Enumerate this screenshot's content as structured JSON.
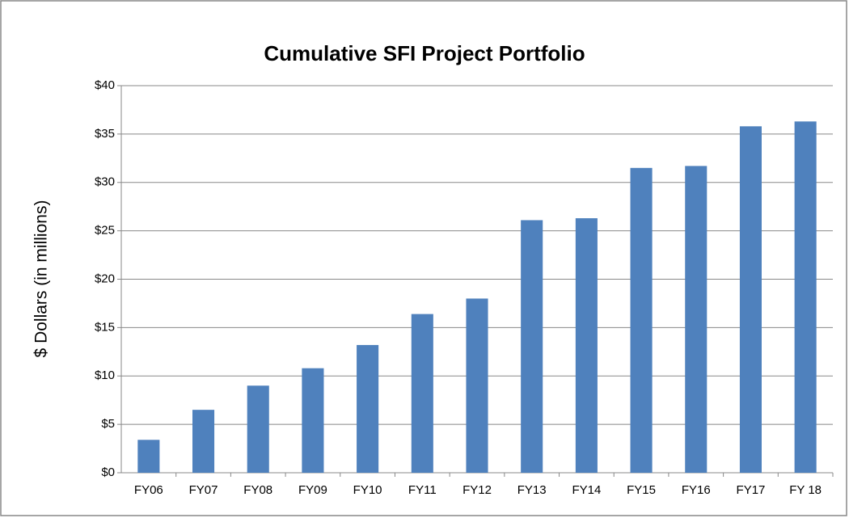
{
  "chart_data": {
    "type": "bar",
    "title": "Cumulative SFI Project Portfolio",
    "y_label": "$ Dollars (in millions)",
    "categories": [
      "FY06",
      "FY07",
      "FY08",
      "FY09",
      "FY10",
      "FY11",
      "FY12",
      "FY13",
      "FY14",
      "FY15",
      "FY16",
      "FY17",
      "FY 18"
    ],
    "values": [
      3.4,
      6.5,
      9.0,
      10.8,
      13.2,
      16.4,
      18.0,
      26.1,
      26.3,
      31.5,
      31.7,
      35.8,
      36.3
    ],
    "color": "#4f81bd",
    "ylim": [
      0,
      40
    ],
    "yticks": [
      {
        "value": 0,
        "label": "$0"
      },
      {
        "value": 5,
        "label": "$5"
      },
      {
        "value": 10,
        "label": "$10"
      },
      {
        "value": 15,
        "label": "$15"
      },
      {
        "value": 20,
        "label": "$20"
      },
      {
        "value": 25,
        "label": "$25"
      },
      {
        "value": 30,
        "label": "$30"
      },
      {
        "value": 35,
        "label": "$35"
      },
      {
        "value": 40,
        "label": "$40"
      }
    ],
    "grid": true
  }
}
